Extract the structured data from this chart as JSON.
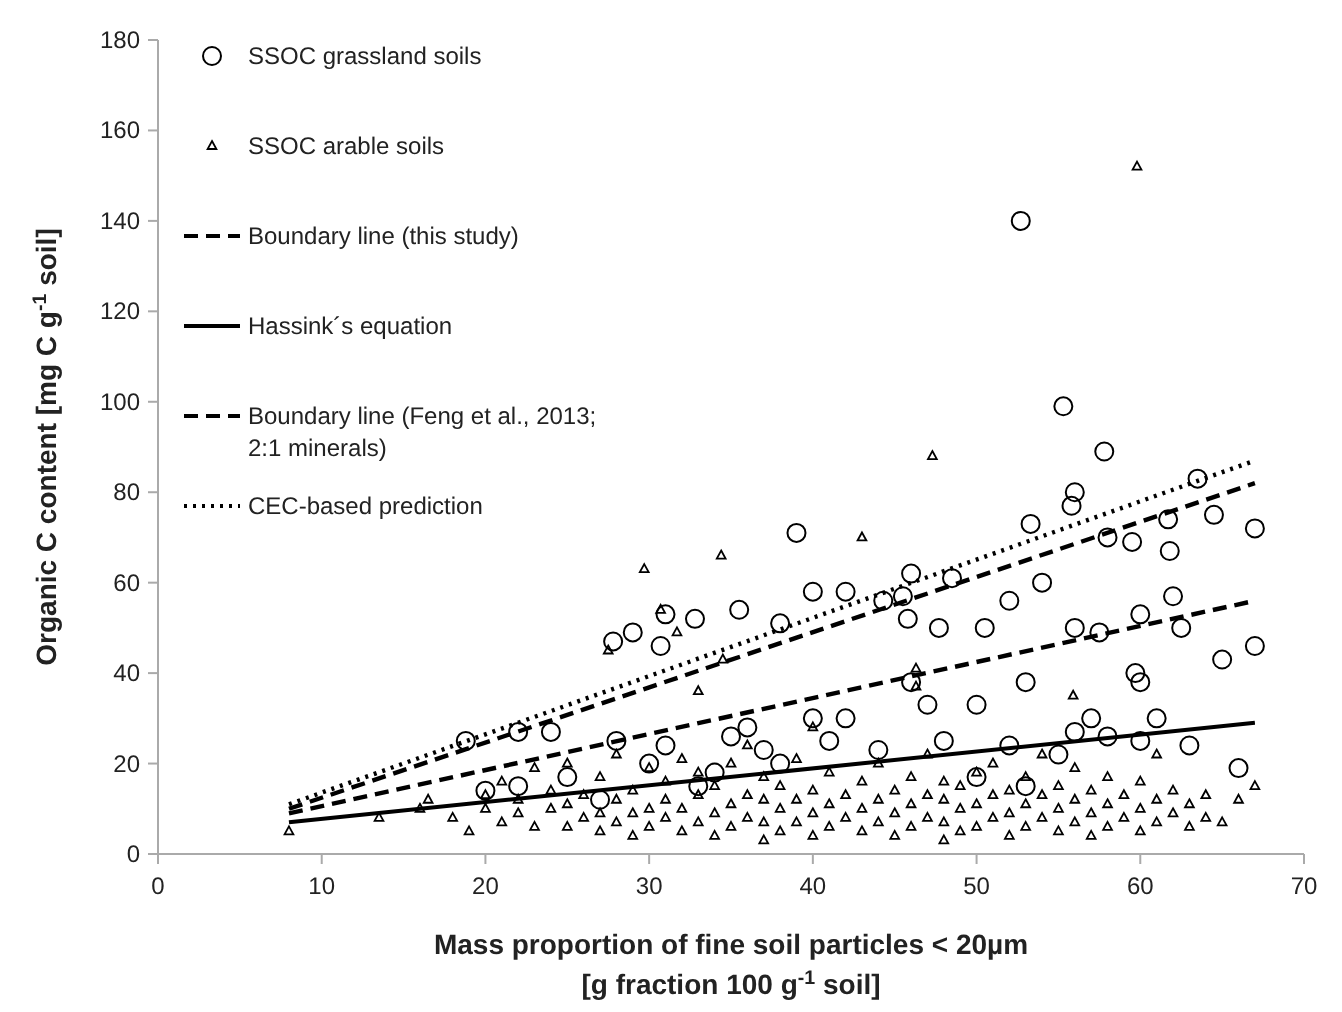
{
  "chart_data": {
    "type": "scatter",
    "xlabel": "Mass proportion of fine soil particles < 20µm\n[g fraction 100 g$^{-1}$ soil]",
    "ylabel": "Organic C content [mg C g$^{-1}$ soil]",
    "xlim": [
      0,
      70
    ],
    "xticks": [
      0,
      10,
      20,
      30,
      40,
      50,
      60,
      70
    ],
    "ylim": [
      0,
      180
    ],
    "yticks": [
      0,
      20,
      40,
      60,
      80,
      100,
      120,
      140,
      160,
      180
    ],
    "grid": false,
    "legend": "top left",
    "series": [
      {
        "name": "SSOC grassland soils",
        "marker": "circle",
        "color": "#000000",
        "x": [
          52.7,
          55.3,
          57.8,
          56,
          55.8,
          63.5,
          61.7,
          59.5,
          64.5,
          67,
          53.3,
          58,
          61.8,
          54,
          62,
          57.5,
          56,
          39,
          31,
          29,
          30.7,
          27.8,
          32.8,
          35.5,
          38,
          42,
          44.3,
          46,
          47.7,
          45.5,
          52,
          48.5,
          50.5,
          60,
          65,
          67,
          62.5,
          59.7,
          60,
          53,
          45.8,
          40,
          46,
          31,
          35,
          24,
          22,
          18.8,
          28,
          36,
          40,
          42,
          47,
          50,
          57,
          56,
          61,
          20,
          22,
          25,
          34,
          38,
          44,
          48,
          52,
          55,
          58,
          60,
          63,
          66,
          50,
          53,
          30,
          33,
          27,
          41,
          37
        ],
        "values": [
          140,
          99,
          89,
          80,
          77,
          83,
          74,
          69,
          75,
          72,
          73,
          70,
          67,
          60,
          57,
          49,
          50,
          71,
          53,
          49,
          46,
          47,
          52,
          54,
          51,
          58,
          56,
          62,
          50,
          57,
          56,
          61,
          50,
          53,
          43,
          46,
          50,
          40,
          38,
          38,
          52,
          58,
          38,
          24,
          26,
          27,
          27,
          25,
          25,
          28,
          30,
          30,
          33,
          33,
          30,
          27,
          30,
          14,
          15,
          17,
          18,
          20,
          23,
          25,
          24,
          22,
          26,
          25,
          24,
          19,
          17,
          15,
          20,
          15,
          12,
          25,
          23
        ]
      },
      {
        "name": "SSOC arable soils",
        "marker": "triangle",
        "color": "#000000",
        "x": [
          8,
          13.5,
          16,
          16.5,
          18,
          19,
          20,
          20,
          21,
          21,
          22,
          22,
          23,
          23,
          24,
          24,
          25,
          25,
          25,
          26,
          26,
          27,
          27,
          27,
          28,
          28,
          28,
          29,
          29,
          29,
          30,
          30,
          30,
          31,
          31,
          31,
          32,
          32,
          32,
          33,
          33,
          33,
          34,
          34,
          34,
          35,
          35,
          35,
          36,
          36,
          36,
          37,
          37,
          37,
          37,
          38,
          38,
          38,
          39,
          39,
          39,
          40,
          40,
          40,
          41,
          41,
          41,
          42,
          42,
          43,
          43,
          43,
          44,
          44,
          44,
          45,
          45,
          45,
          46,
          46,
          46,
          47,
          47,
          47,
          48,
          48,
          48,
          48,
          49,
          49,
          49,
          50,
          50,
          50,
          51,
          51,
          51,
          52,
          52,
          52,
          53,
          53,
          53,
          54,
          54,
          54,
          55,
          55,
          55,
          56,
          56,
          56,
          57,
          57,
          57,
          58,
          58,
          58,
          59,
          59,
          60,
          60,
          60,
          61,
          61,
          61,
          62,
          62,
          63,
          63,
          64,
          64,
          65,
          66,
          67,
          59.8,
          34.4,
          29.7,
          43,
          47.3,
          27.5,
          31.7,
          34.5,
          30.7,
          55.9,
          46.3,
          46.3,
          33,
          40
        ],
        "values": [
          5,
          8,
          10,
          12,
          8,
          5,
          10,
          13,
          7,
          16,
          9,
          12,
          6,
          19,
          10,
          14,
          6,
          11,
          20,
          8,
          13,
          5,
          9,
          17,
          7,
          12,
          22,
          4,
          9,
          14,
          6,
          10,
          19,
          8,
          12,
          16,
          5,
          10,
          21,
          7,
          13,
          18,
          4,
          9,
          15,
          6,
          11,
          20,
          8,
          13,
          24,
          3,
          7,
          12,
          17,
          5,
          10,
          15,
          7,
          12,
          21,
          4,
          9,
          14,
          6,
          11,
          18,
          8,
          13,
          5,
          10,
          16,
          7,
          12,
          20,
          4,
          9,
          14,
          6,
          11,
          17,
          8,
          13,
          22,
          3,
          7,
          12,
          16,
          5,
          10,
          15,
          6,
          11,
          18,
          8,
          13,
          20,
          4,
          9,
          14,
          6,
          11,
          17,
          8,
          13,
          22,
          5,
          10,
          15,
          7,
          12,
          19,
          4,
          9,
          14,
          6,
          11,
          17,
          8,
          13,
          5,
          10,
          16,
          7,
          12,
          22,
          9,
          14,
          6,
          11,
          8,
          13,
          7,
          12,
          15,
          152,
          66,
          63,
          70,
          88,
          45,
          49,
          43,
          54,
          35,
          37,
          41,
          36,
          28
        ]
      },
      {
        "name": "Boundary line (this study)",
        "type": "line",
        "line_style": "dashed",
        "marker": "none",
        "color": "#000000",
        "x": [
          8,
          67
        ],
        "values": [
          10,
          82
        ]
      },
      {
        "name": "Hassink´s equation",
        "type": "line",
        "line_style": "solid",
        "marker": "none",
        "color": "#000000",
        "x": [
          8,
          67
        ],
        "values": [
          7,
          29
        ]
      },
      {
        "name": "Boundary line (Feng et al., 2013;\n2:1 minerals)",
        "type": "line",
        "line_style": "dashed",
        "marker": "none",
        "color": "#000000",
        "x": [
          8,
          67
        ],
        "values": [
          9,
          56
        ]
      },
      {
        "name": "CEC-based prediction",
        "type": "line",
        "line_style": "dotted",
        "marker": "none",
        "color": "#000000",
        "x": [
          8,
          67
        ],
        "values": [
          11,
          87
        ]
      }
    ]
  }
}
